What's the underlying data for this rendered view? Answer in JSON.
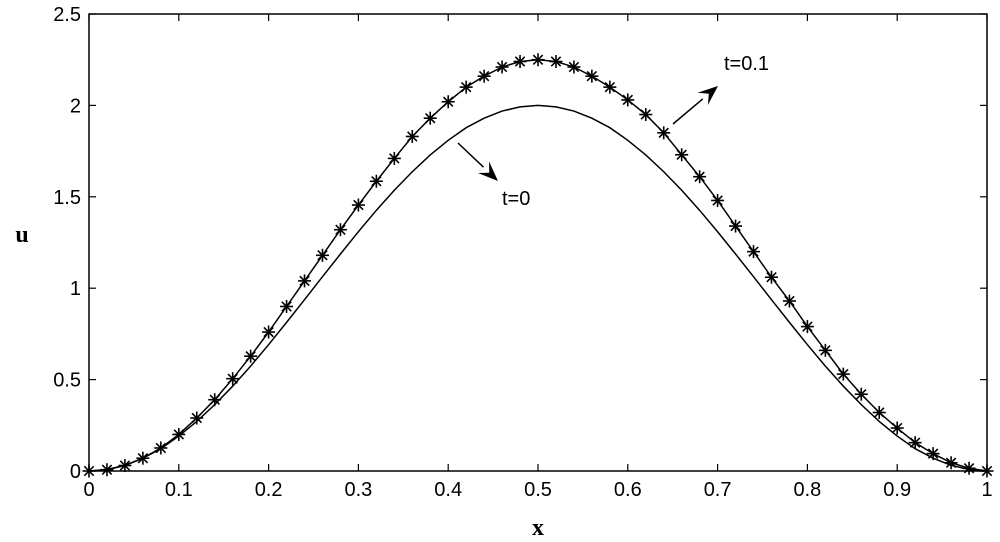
{
  "chart_data": {
    "type": "line",
    "title": "",
    "xlabel": "x",
    "ylabel": "u",
    "xlim": [
      0,
      1
    ],
    "ylim": [
      0,
      2.5
    ],
    "xticks": [
      "0",
      "0.1",
      "0.2",
      "0.3",
      "0.4",
      "0.5",
      "0.6",
      "0.7",
      "0.8",
      "0.9",
      "1"
    ],
    "yticks": [
      "0",
      "0.5",
      "1",
      "1.5",
      "2",
      "2.5"
    ],
    "grid": false,
    "series": [
      {
        "label": "t=0",
        "style": "solid line",
        "x": [
          0,
          0.02,
          0.04,
          0.06,
          0.08,
          0.1,
          0.12,
          0.14,
          0.16,
          0.18,
          0.2,
          0.22,
          0.24,
          0.26,
          0.28,
          0.3,
          0.32,
          0.34,
          0.36,
          0.38,
          0.4,
          0.42,
          0.44,
          0.46,
          0.48,
          0.5,
          0.52,
          0.54,
          0.56,
          0.58,
          0.6,
          0.62,
          0.64,
          0.66,
          0.68,
          0.7,
          0.72,
          0.74,
          0.76,
          0.78,
          0.8,
          0.82,
          0.84,
          0.86,
          0.88,
          0.9,
          0.92,
          0.94,
          0.96,
          0.98,
          1
        ],
        "y": [
          0,
          0.008,
          0.031,
          0.07,
          0.122,
          0.191,
          0.271,
          0.363,
          0.464,
          0.574,
          0.691,
          0.813,
          0.937,
          1.063,
          1.187,
          1.309,
          1.426,
          1.536,
          1.637,
          1.729,
          1.809,
          1.878,
          1.93,
          1.969,
          1.992,
          2.0,
          1.992,
          1.969,
          1.93,
          1.878,
          1.809,
          1.729,
          1.637,
          1.536,
          1.426,
          1.309,
          1.187,
          1.063,
          0.937,
          0.813,
          0.691,
          0.574,
          0.464,
          0.363,
          0.271,
          0.191,
          0.122,
          0.07,
          0.031,
          0.008,
          0
        ]
      },
      {
        "label": "t=0.1",
        "style": "solid line with asterisk markers",
        "x": [
          0,
          0.02,
          0.04,
          0.06,
          0.08,
          0.1,
          0.12,
          0.14,
          0.16,
          0.18,
          0.2,
          0.22,
          0.24,
          0.26,
          0.28,
          0.3,
          0.32,
          0.34,
          0.36,
          0.38,
          0.4,
          0.42,
          0.44,
          0.46,
          0.48,
          0.5,
          0.52,
          0.54,
          0.56,
          0.58,
          0.6,
          0.62,
          0.64,
          0.66,
          0.68,
          0.7,
          0.72,
          0.74,
          0.76,
          0.78,
          0.8,
          0.82,
          0.84,
          0.86,
          0.88,
          0.9,
          0.92,
          0.94,
          0.96,
          0.98,
          1
        ],
        "y": [
          0,
          0.007,
          0.03,
          0.07,
          0.126,
          0.2,
          0.29,
          0.39,
          0.505,
          0.628,
          0.76,
          0.9,
          1.04,
          1.18,
          1.32,
          1.455,
          1.585,
          1.71,
          1.83,
          1.93,
          2.02,
          2.1,
          2.16,
          2.21,
          2.24,
          2.25,
          2.24,
          2.21,
          2.16,
          2.1,
          2.03,
          1.95,
          1.85,
          1.73,
          1.61,
          1.48,
          1.34,
          1.2,
          1.06,
          0.93,
          0.79,
          0.66,
          0.53,
          0.42,
          0.32,
          0.235,
          0.155,
          0.095,
          0.045,
          0.015,
          0
        ]
      }
    ],
    "annotations": [
      {
        "text": "t=0.1",
        "target_series": "t=0.1",
        "arrow": true
      },
      {
        "text": "t=0",
        "target_series": "t=0",
        "arrow": true
      }
    ]
  }
}
